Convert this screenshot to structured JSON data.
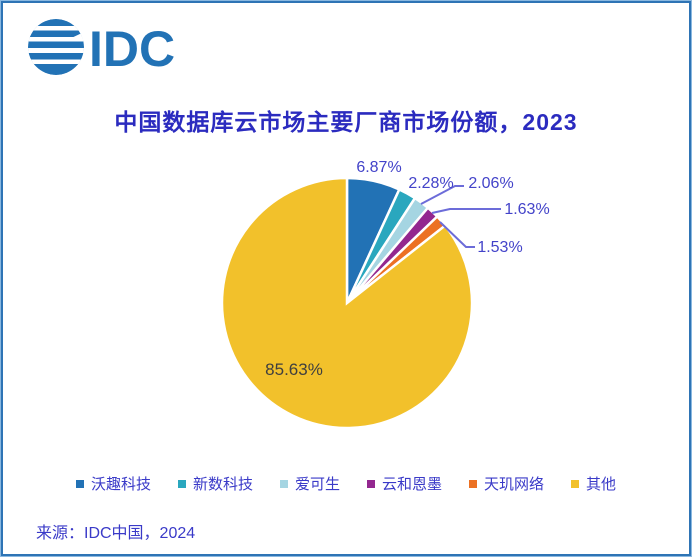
{
  "logo": {
    "text": "IDC"
  },
  "header": {
    "title": "中国数据库云市场主要厂商市场份额，2023"
  },
  "chart_data": {
    "type": "pie",
    "title": "中国数据库云市场主要厂商市场份额，2023",
    "categories": [
      "沃趣科技",
      "新数科技",
      "爱可生",
      "云和恩墨",
      "天玑网络",
      "其他"
    ],
    "values": [
      6.87,
      2.28,
      2.06,
      1.63,
      1.53,
      85.63
    ],
    "labels": [
      "6.87%",
      "2.28%",
      "2.06%",
      "1.63%",
      "1.53%",
      "85.63%"
    ],
    "colors": [
      "#2272b5",
      "#2aa7be",
      "#a5d5e2",
      "#93278f",
      "#ec7123",
      "#f2c12b"
    ],
    "unit": "%",
    "start_angle_deg": -90,
    "direction": "clockwise",
    "legend_position": "bottom"
  },
  "footer": {
    "source": "来源：IDC中国，2024"
  },
  "style": {
    "brand_blue": "#2272b5",
    "title_color": "#2b2bbf",
    "percent_label_color": "#4343c9",
    "inside_label_color": "#3f3f3f",
    "leader_line_color": "#6c6cd9",
    "frame_border_color": "#2e74b5"
  }
}
